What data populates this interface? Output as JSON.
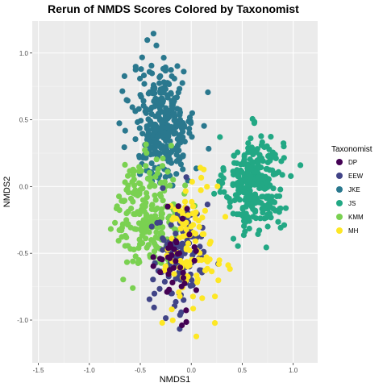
{
  "chart_data": {
    "type": "scatter",
    "title": "Rerun of NMDS Scores Colored by Taxonomist",
    "xlabel": "NMDS1",
    "ylabel": "NMDS2",
    "xlim": [
      -1.56,
      1.24
    ],
    "ylim": [
      -1.32,
      1.24
    ],
    "x_ticks": [
      -1.5,
      -1.0,
      -0.5,
      0.0,
      0.5,
      1.0
    ],
    "x_tick_labels": [
      "-1.5",
      "-1.0",
      "-0.5",
      "0.0",
      "0.5",
      "1.0"
    ],
    "y_ticks": [
      -1.0,
      -0.5,
      0.0,
      0.5,
      1.0
    ],
    "y_tick_labels": [
      "-1.0",
      "-0.5",
      "0.0",
      "0.5",
      "1.0"
    ],
    "grid": true,
    "legend_title": "Taxonomist",
    "legend_position": "right",
    "series": [
      {
        "name": "DP",
        "color": "#440154",
        "center": [
          -0.15,
          -0.55
        ],
        "spread": [
          0.1,
          0.18
        ],
        "count": 40
      },
      {
        "name": "EEW",
        "color": "#414487",
        "center": [
          -0.1,
          -0.55
        ],
        "spread": [
          0.14,
          0.22
        ],
        "count": 120
      },
      {
        "name": "JKE",
        "color": "#2A788E",
        "center": [
          -0.27,
          0.48
        ],
        "spread": [
          0.15,
          0.22
        ],
        "count": 320
      },
      {
        "name": "JS",
        "color": "#22A884",
        "center": [
          0.62,
          0.02
        ],
        "spread": [
          0.14,
          0.18
        ],
        "count": 300
      },
      {
        "name": "KMM",
        "color": "#7AD151",
        "center": [
          -0.42,
          -0.2
        ],
        "spread": [
          0.16,
          0.2
        ],
        "count": 220
      },
      {
        "name": "MH",
        "color": "#FDE725",
        "center": [
          0.0,
          -0.45
        ],
        "spread": [
          0.13,
          0.25
        ],
        "count": 110
      }
    ]
  }
}
